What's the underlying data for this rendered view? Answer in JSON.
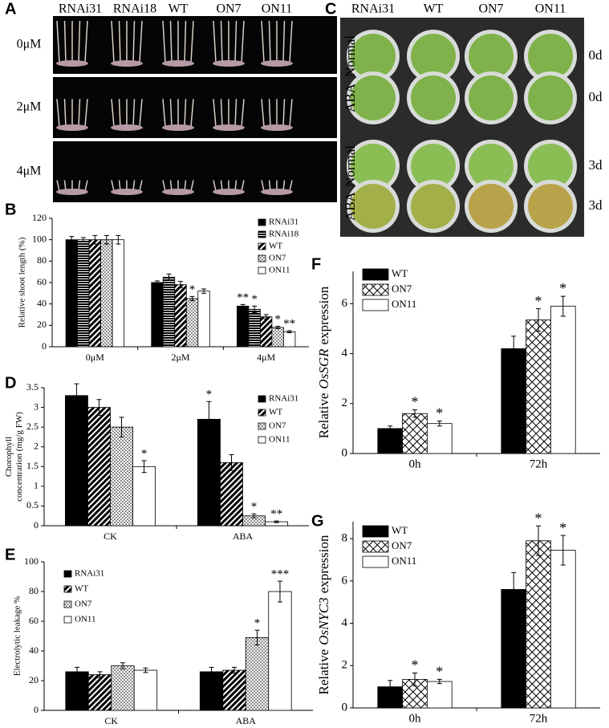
{
  "photos": [
    {
      "panel": "A",
      "columns": [
        "RNAi31",
        "RNAi18",
        "WT",
        "ON7",
        "ON11"
      ],
      "rows": [
        "0μM",
        "2μM",
        "4μM"
      ]
    },
    {
      "panel": "C",
      "columns": [
        "RNAi31",
        "WT",
        "ON7",
        "ON11"
      ],
      "rows": [
        {
          "treatment": "Normal",
          "time": "0d"
        },
        {
          "treatment": "ABA",
          "time": "0d"
        },
        {
          "treatment": "Normal",
          "time": "3d"
        },
        {
          "treatment": "ABA",
          "time": "3d"
        }
      ]
    }
  ],
  "chart_data": [
    {
      "type": "bar",
      "panel": "B",
      "ylabel_lines": [
        "Relative shoot length (%)"
      ],
      "categories": [
        "0μM",
        "2μM",
        "4μM"
      ],
      "ylim": [
        0,
        120
      ],
      "yticks": [
        0,
        20,
        40,
        60,
        80,
        100,
        120
      ],
      "series": [
        {
          "name": "RNAi31",
          "style": "solid",
          "color": "#000000",
          "values": [
            100,
            60,
            38
          ],
          "errors": [
            3,
            1.5,
            1.5
          ],
          "significance": [
            null,
            null,
            "**"
          ]
        },
        {
          "name": "RNAi18",
          "style": "grid",
          "color": "#000000",
          "values": [
            100,
            65,
            35
          ],
          "errors": [
            2,
            3,
            3
          ],
          "significance": [
            null,
            null,
            "*"
          ]
        },
        {
          "name": "WT",
          "style": "diagonal",
          "color": "#000000",
          "values": [
            100,
            58,
            28
          ],
          "errors": [
            4,
            3,
            2
          ],
          "significance": [
            null,
            null,
            null
          ]
        },
        {
          "name": "ON7",
          "style": "dots",
          "color": "#000000",
          "values": [
            100,
            45,
            18
          ],
          "errors": [
            4,
            2,
            1
          ],
          "significance": [
            null,
            "*",
            "*"
          ]
        },
        {
          "name": "ON11",
          "style": "open",
          "color": "#000000",
          "values": [
            100,
            52,
            14
          ],
          "errors": [
            4,
            2,
            1
          ],
          "significance": [
            null,
            null,
            "**"
          ]
        }
      ]
    },
    {
      "type": "bar",
      "panel": "D",
      "ylabel_lines": [
        "Chorophyll",
        "concentration (mg/g FW)"
      ],
      "categories": [
        "CK",
        "ABA"
      ],
      "ylim": [
        0,
        3.5
      ],
      "yticks": [
        0,
        0.5,
        1,
        1.5,
        2,
        2.5,
        3,
        3.5
      ],
      "series": [
        {
          "name": "RNAi31",
          "style": "solid",
          "color": "#000000",
          "values": [
            3.3,
            2.7
          ],
          "errors": [
            0.3,
            0.45
          ],
          "significance": [
            null,
            "*"
          ]
        },
        {
          "name": "WT",
          "style": "diagonal",
          "color": "#000000",
          "values": [
            3.0,
            1.6
          ],
          "errors": [
            0.2,
            0.2
          ],
          "significance": [
            null,
            null
          ]
        },
        {
          "name": "ON7",
          "style": "dots",
          "color": "#000000",
          "values": [
            2.5,
            0.25
          ],
          "errors": [
            0.25,
            0.05
          ],
          "significance": [
            null,
            "*"
          ]
        },
        {
          "name": "ON11",
          "style": "open",
          "color": "#000000",
          "values": [
            1.5,
            0.1
          ],
          "errors": [
            0.15,
            0.02
          ],
          "significance": [
            "*",
            "**"
          ]
        }
      ]
    },
    {
      "type": "bar",
      "panel": "E",
      "ylabel_lines": [
        "Electrolytic leakage %"
      ],
      "categories": [
        "CK",
        "ABA"
      ],
      "ylim": [
        0,
        100
      ],
      "yticks": [
        0,
        20,
        40,
        60,
        80,
        100
      ],
      "series": [
        {
          "name": "RNAi31",
          "style": "solid",
          "color": "#000000",
          "values": [
            26,
            26
          ],
          "errors": [
            3,
            3
          ],
          "significance": [
            null,
            null
          ]
        },
        {
          "name": "WT",
          "style": "diagonal",
          "color": "#000000",
          "values": [
            24,
            27
          ],
          "errors": [
            2,
            2
          ],
          "significance": [
            null,
            null
          ]
        },
        {
          "name": "ON7",
          "style": "dots",
          "color": "#000000",
          "values": [
            30,
            49
          ],
          "errors": [
            2,
            5
          ],
          "significance": [
            null,
            "*"
          ]
        },
        {
          "name": "ON11",
          "style": "open",
          "color": "#000000",
          "values": [
            27,
            80
          ],
          "errors": [
            1.5,
            7
          ],
          "significance": [
            null,
            "***"
          ]
        }
      ]
    },
    {
      "type": "bar",
      "panel": "F",
      "ylabel_parts": [
        "Relative",
        "OsSGR",
        "expression"
      ],
      "italic_part": 1,
      "categories": [
        "0h",
        "72h"
      ],
      "ylim": [
        0,
        7.3
      ],
      "yticks": [
        0,
        2,
        4,
        6
      ],
      "series": [
        {
          "name": "WT",
          "style": "solid",
          "color": "#000000",
          "values": [
            1.0,
            4.2
          ],
          "errors": [
            0.1,
            0.5
          ],
          "significance": [
            null,
            null
          ]
        },
        {
          "name": "ON7",
          "style": "crosshatch",
          "color": "#000000",
          "values": [
            1.6,
            5.35
          ],
          "errors": [
            0.15,
            0.45
          ],
          "significance": [
            "*",
            "*"
          ]
        },
        {
          "name": "ON11",
          "style": "open",
          "color": "#000000",
          "values": [
            1.2,
            5.9
          ],
          "errors": [
            0.1,
            0.4
          ],
          "significance": [
            "*",
            "*"
          ]
        }
      ]
    },
    {
      "type": "bar",
      "panel": "G",
      "ylabel_parts": [
        "Relative",
        "OsNYC3",
        "expression"
      ],
      "italic_part": 1,
      "categories": [
        "0h",
        "72h"
      ],
      "ylim": [
        0,
        8.8
      ],
      "yticks": [
        0,
        2,
        4,
        6,
        8
      ],
      "series": [
        {
          "name": "WT",
          "style": "solid",
          "color": "#000000",
          "values": [
            1.0,
            5.6
          ],
          "errors": [
            0.3,
            0.8
          ],
          "significance": [
            null,
            null
          ]
        },
        {
          "name": "ON7",
          "style": "crosshatch",
          "color": "#000000",
          "values": [
            1.35,
            7.9
          ],
          "errors": [
            0.3,
            0.7
          ],
          "significance": [
            "*",
            "*"
          ]
        },
        {
          "name": "ON11",
          "style": "open",
          "color": "#000000",
          "values": [
            1.25,
            7.45
          ],
          "errors": [
            0.1,
            0.7
          ],
          "significance": [
            "*",
            "*"
          ]
        }
      ]
    }
  ]
}
